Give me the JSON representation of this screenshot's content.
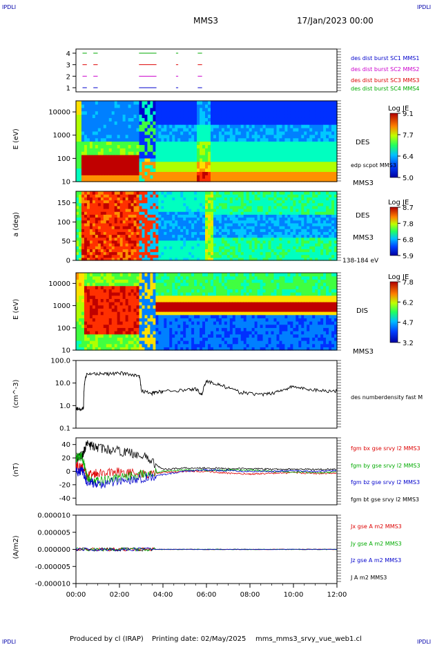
{
  "header": {
    "corner_tl": "IPDLI",
    "corner_tr": "IPDLI",
    "corner_bl": "IPDLI",
    "corner_br": "IPDLI",
    "spacecraft": "MMS3",
    "date": "17/Jan/2023 00:00"
  },
  "footer": {
    "produced_by": "Produced by cl (IRAP)",
    "printing_date": "Printing date: 02/May/2025",
    "filename": "mms_mms3_srvy_vue_web1.cl"
  },
  "colors": {
    "mms1": "#0000cc",
    "mms2": "#cc00cc",
    "mms3": "#dd0000",
    "mms4": "#00aa00",
    "black": "#000000"
  },
  "chart_data": [
    {
      "type": "line",
      "panel": "burst availability",
      "yticks": [
        "1",
        "2",
        "3",
        "4"
      ],
      "series": [
        {
          "name": "des dist burst SC1 MMS1",
          "color": "#0000cc",
          "segments": [
            [
              0.3,
              0.5
            ],
            [
              0.8,
              1.0
            ],
            [
              2.9,
              3.7
            ],
            [
              4.6,
              4.7
            ],
            [
              5.6,
              5.8
            ]
          ]
        },
        {
          "name": "des dist burst SC2 MMS2",
          "color": "#cc00cc",
          "segments": [
            [
              0.3,
              0.5
            ],
            [
              0.8,
              1.0
            ],
            [
              2.9,
              3.7
            ],
            [
              4.6,
              4.7
            ],
            [
              5.6,
              5.8
            ]
          ]
        },
        {
          "name": "des dist burst SC3 MMS3",
          "color": "#dd0000",
          "segments": [
            [
              0.3,
              0.5
            ],
            [
              0.8,
              1.0
            ],
            [
              2.9,
              3.7
            ],
            [
              4.6,
              4.7
            ],
            [
              5.6,
              5.8
            ]
          ]
        },
        {
          "name": "des dist burst SC4 MMS4",
          "color": "#00aa00",
          "segments": [
            [
              0.3,
              0.5
            ],
            [
              0.8,
              1.0
            ],
            [
              2.9,
              3.7
            ],
            [
              4.6,
              4.7
            ],
            [
              5.6,
              5.8
            ]
          ]
        }
      ]
    },
    {
      "type": "heatmap",
      "panel": "DES energy spectrogram",
      "ylabel": "E (eV)",
      "yscale": "log",
      "ylim": [
        10,
        30000
      ],
      "yticks": [
        "10",
        "100",
        "1000",
        "10000"
      ],
      "label": "DES",
      "label2": "edp scpot MMS3",
      "label3": "MMS3",
      "colorbar": {
        "title": "Log JE",
        "ticks": [
          "9.1",
          "7.7",
          "6.4",
          "5.0"
        ]
      }
    },
    {
      "type": "heatmap",
      "panel": "DES pitch angle",
      "ylabel": "a (deg)",
      "ylim": [
        0,
        180
      ],
      "yticks": [
        "0",
        "50",
        "100",
        "150"
      ],
      "label": "DES",
      "label2": "MMS3",
      "label3": "138-184 eV",
      "colorbar": {
        "title": "Log JE",
        "ticks": [
          "8.7",
          "7.8",
          "6.8",
          "5.9"
        ]
      }
    },
    {
      "type": "heatmap",
      "panel": "DIS energy spectrogram",
      "ylabel": "E (eV)",
      "yscale": "log",
      "ylim": [
        10,
        30000
      ],
      "yticks": [
        "10",
        "100",
        "1000",
        "10000"
      ],
      "label": "DIS",
      "label2": "MMS3",
      "colorbar": {
        "title": "Log JE",
        "ticks": [
          "7.8",
          "6.2",
          "4.7",
          "3.2"
        ]
      }
    },
    {
      "type": "line",
      "panel": "density",
      "ylabel": "(cm^-3)",
      "yscale": "log",
      "ylim": [
        0.1,
        100
      ],
      "yticks": [
        "0.1",
        "1.0",
        "10.0",
        "100.0"
      ],
      "series": [
        {
          "name": "des numberdensity fast M",
          "color": "#000000",
          "x": [
            0.0,
            0.2,
            0.35,
            0.4,
            0.5,
            1.0,
            1.5,
            2.0,
            2.5,
            2.9,
            3.0,
            3.5,
            3.7,
            4.0,
            5.0,
            5.5,
            5.8,
            6.0,
            6.5,
            7.0,
            7.5,
            8.0,
            8.5,
            9.0,
            9.5,
            10.0,
            10.5,
            11.0,
            11.5,
            12.0
          ],
          "y": [
            0.75,
            0.7,
            0.8,
            10.0,
            25,
            27,
            25,
            28,
            24,
            22,
            4.5,
            3.5,
            4,
            4.2,
            5,
            5.5,
            3,
            12,
            9,
            6,
            4,
            3.5,
            3,
            3.5,
            5,
            7,
            5.5,
            5,
            4.5,
            4.5
          ]
        }
      ]
    },
    {
      "type": "line",
      "panel": "magnetic field",
      "ylabel": "(nT)",
      "ylim": [
        -50,
        50
      ],
      "yticks": [
        "-40",
        "-20",
        "0",
        "20",
        "40"
      ],
      "series": [
        {
          "name": "fgm bx gse srvy l2 MMS3",
          "color": "#dd0000",
          "x": [
            0,
            0.3,
            0.5,
            1,
            2,
            3,
            4,
            5,
            6,
            7,
            8,
            9,
            10,
            11,
            12
          ],
          "y": [
            8,
            5,
            -5,
            -2,
            0,
            -5,
            -2,
            0,
            0,
            -3,
            -4,
            -3,
            -2,
            -3,
            -3
          ]
        },
        {
          "name": "fgm by gse srvy l2 MMS3",
          "color": "#00aa00",
          "x": [
            0,
            0.3,
            0.5,
            1,
            2,
            3,
            4,
            5,
            6,
            7,
            8,
            9,
            10,
            11,
            12
          ],
          "y": [
            20,
            22,
            -10,
            -15,
            -10,
            -5,
            0,
            2,
            1,
            2,
            2,
            0,
            -1,
            -2,
            -1
          ]
        },
        {
          "name": "fgm bz gse srvy l2 MMS3",
          "color": "#0000cc",
          "x": [
            0,
            0.3,
            0.5,
            1,
            2,
            3,
            4,
            5,
            6,
            7,
            8,
            9,
            10,
            11,
            12
          ],
          "y": [
            0,
            0,
            -15,
            -20,
            -15,
            -10,
            -5,
            0,
            2,
            1,
            0,
            0,
            1,
            0,
            1
          ]
        },
        {
          "name": "fgm bt gse srvy l2 MMS3",
          "color": "#000000",
          "x": [
            0,
            0.3,
            0.5,
            1,
            2,
            3,
            4,
            5,
            6,
            7,
            8,
            9,
            10,
            11,
            12
          ],
          "y": [
            20,
            25,
            40,
            35,
            30,
            25,
            3,
            5,
            5,
            4,
            4,
            3,
            3,
            3,
            3
          ]
        }
      ]
    },
    {
      "type": "line",
      "panel": "current density",
      "ylabel": "(A/m2)",
      "ylim": [
        -0.0001,
        0.0001
      ],
      "yticks": [
        "-0.000010",
        "-0.000005",
        "0.000000",
        "0.000005",
        "0.000010"
      ],
      "series": [
        {
          "name": "Jx gse A m2 MMS3",
          "color": "#dd0000",
          "x": [
            0,
            3.6,
            12
          ],
          "y": [
            0,
            0,
            0
          ]
        },
        {
          "name": "Jy gse A m2 MMS3",
          "color": "#00aa00",
          "x": [
            0,
            3.6,
            12
          ],
          "y": [
            0,
            0,
            0
          ]
        },
        {
          "name": "Jz gse A m2 MMS3",
          "color": "#0000cc",
          "x": [
            0,
            3.6,
            12
          ],
          "y": [
            0,
            0,
            0
          ]
        },
        {
          "name": "J A m2 MMS3",
          "color": "#000000",
          "x": [
            0,
            3.6,
            12
          ],
          "y": [
            0,
            0,
            0
          ]
        }
      ]
    }
  ],
  "xaxis": {
    "ticks": [
      "00:00",
      "02:00",
      "04:00",
      "06:00",
      "08:00",
      "10:00",
      "12:00"
    ],
    "range_hours": [
      0,
      12
    ]
  }
}
